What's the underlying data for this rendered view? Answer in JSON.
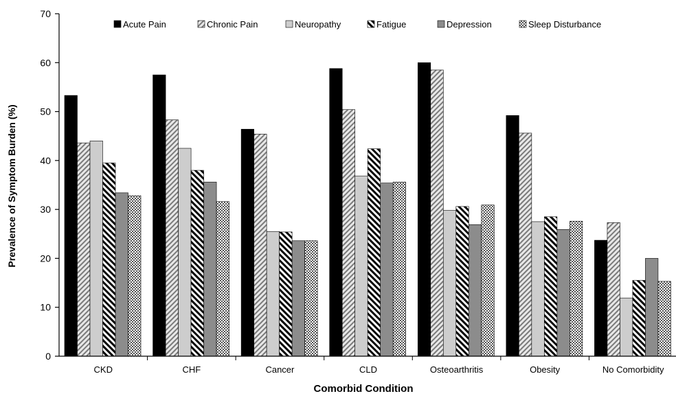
{
  "chart_data": {
    "type": "bar",
    "title": "",
    "xlabel": "Comorbid Condition",
    "ylabel": "Prevalence of Symptom Burden (%)",
    "ylim": [
      0,
      70
    ],
    "yticks": [
      0,
      10,
      20,
      30,
      40,
      50,
      60,
      70
    ],
    "grid": false,
    "legend_position": "top",
    "categories": [
      "CKD",
      "CHF",
      "Cancer",
      "CLD",
      "Osteoarthritis",
      "Obesity",
      "No Comorbidity"
    ],
    "series": [
      {
        "name": "Acute Pain",
        "pattern": "solid-black",
        "values": [
          53.3,
          57.5,
          46.4,
          58.8,
          60.0,
          49.2,
          23.7
        ]
      },
      {
        "name": "Chronic Pain",
        "pattern": "diagonal-light",
        "values": [
          43.6,
          48.3,
          45.4,
          50.4,
          58.5,
          45.6,
          27.3
        ]
      },
      {
        "name": "Neuropathy",
        "pattern": "solid-light-gray",
        "values": [
          44.0,
          42.5,
          25.5,
          36.8,
          29.8,
          27.5,
          11.9
        ]
      },
      {
        "name": "Fatigue",
        "pattern": "diagonal-dark",
        "values": [
          39.5,
          38.0,
          25.4,
          42.4,
          30.6,
          28.5,
          15.5
        ]
      },
      {
        "name": "Depression",
        "pattern": "solid-mid-gray",
        "values": [
          33.4,
          35.6,
          23.6,
          35.4,
          26.9,
          25.9,
          20.0
        ]
      },
      {
        "name": "Sleep Disturbance",
        "pattern": "checker",
        "values": [
          32.8,
          31.6,
          23.6,
          35.6,
          30.9,
          27.6,
          15.3
        ]
      }
    ],
    "colors": {
      "solid_black": "#000000",
      "light_gray": "#cdcdcd",
      "mid_gray": "#8c8c8c",
      "hatch_light_bg": "#e6e6e6",
      "hatch_light_fg": "#7a7a7a",
      "axis": "#000000"
    }
  }
}
